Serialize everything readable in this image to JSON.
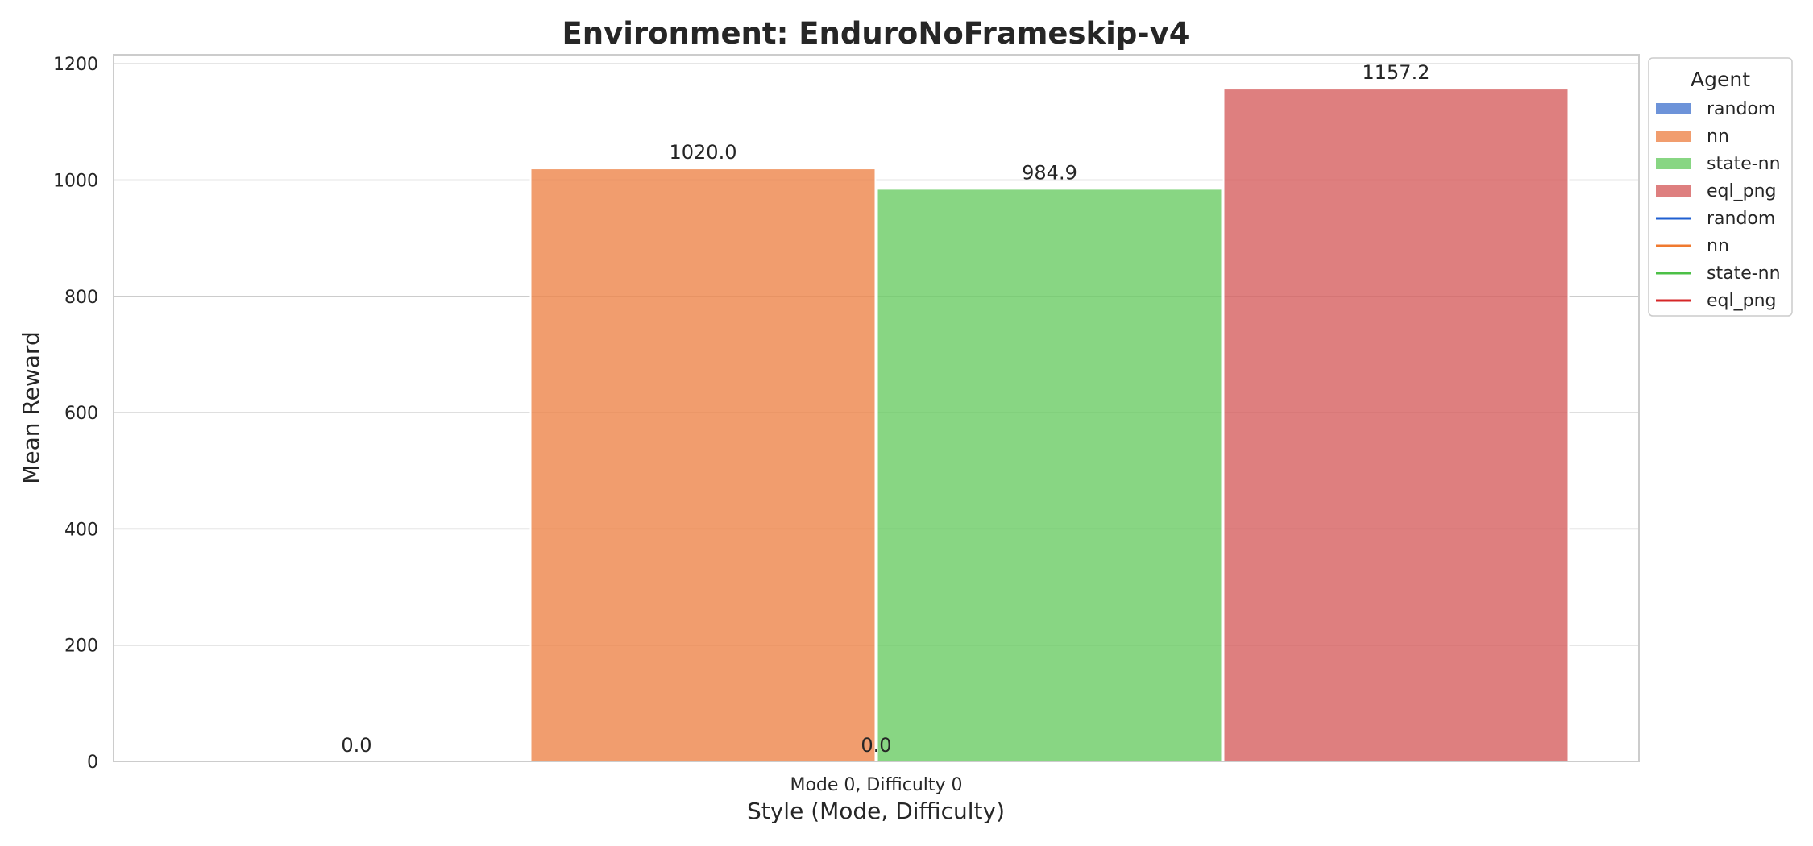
{
  "chart_data": {
    "type": "bar",
    "title": "Environment: EnduroNoFrameskip-v4",
    "xlabel": "Style (Mode, Difficulty)",
    "ylabel": "Mean Reward",
    "categories": [
      "Mode 0, Difficulty 0"
    ],
    "ylim": [
      0,
      1215
    ],
    "yticks": [
      0,
      200,
      400,
      600,
      800,
      1000,
      1200
    ],
    "ytick_labels": [
      "0",
      "200",
      "400",
      "600",
      "800",
      "1000",
      "1200"
    ],
    "grid": true,
    "series": [
      {
        "name": "random",
        "values": [
          0.0
        ],
        "label": "0.0",
        "color": "#4878d0"
      },
      {
        "name": "nn",
        "values": [
          1020.0
        ],
        "label": "1020.0",
        "color": "#ee854a"
      },
      {
        "name": "state-nn",
        "values": [
          984.9
        ],
        "label": "984.9",
        "color": "#6acc64"
      },
      {
        "name": "eql_png",
        "values": [
          1157.2
        ],
        "label": "1157.2",
        "color": "#d65f5f"
      }
    ],
    "extra_labels": [
      "0.0"
    ],
    "legend": {
      "title": "Agent",
      "placement": "outside top-right",
      "entries": [
        {
          "label": "random",
          "kind": "patch",
          "color": "#4878d0"
        },
        {
          "label": "nn",
          "kind": "patch",
          "color": "#ee854a"
        },
        {
          "label": "state-nn",
          "kind": "patch",
          "color": "#6acc64"
        },
        {
          "label": "eql_png",
          "kind": "patch",
          "color": "#d65f5f"
        },
        {
          "label": "random",
          "kind": "line",
          "color": "#1f5fd1"
        },
        {
          "label": "nn",
          "kind": "line",
          "color": "#f07a2f"
        },
        {
          "label": "state-nn",
          "kind": "line",
          "color": "#4cc047"
        },
        {
          "label": "eql_png",
          "kind": "line",
          "color": "#d62728"
        }
      ]
    }
  }
}
